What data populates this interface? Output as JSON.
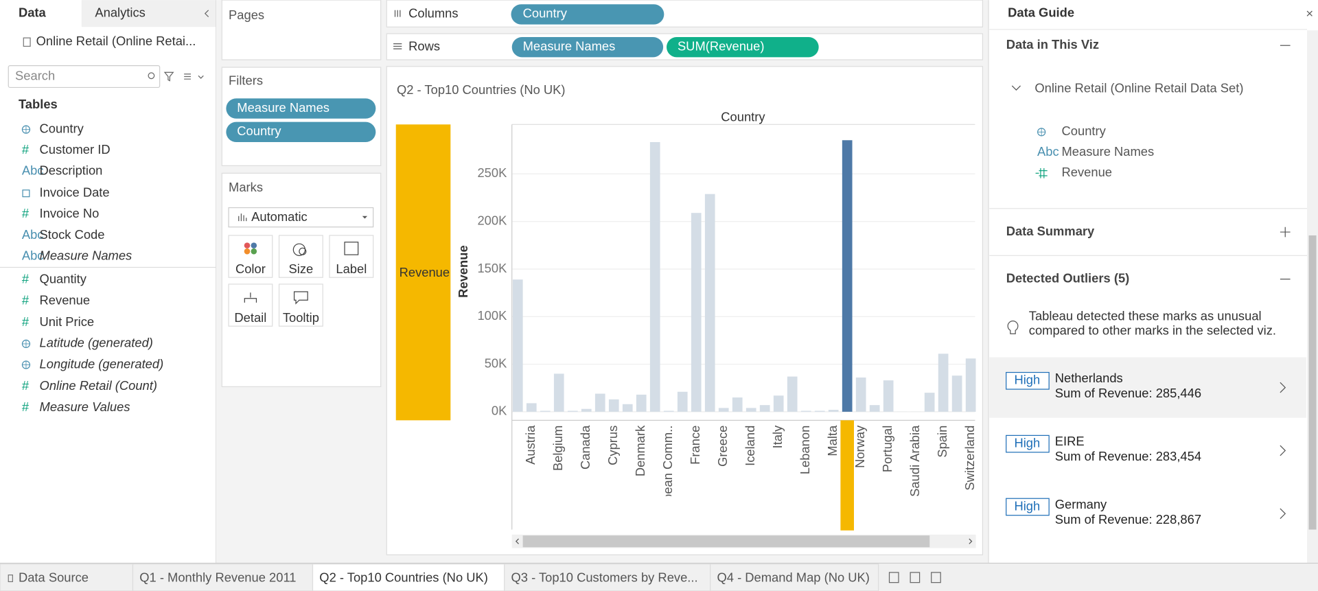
{
  "sidebar": {
    "tabs": [
      "Data",
      "Analytics"
    ],
    "datasource": "Online Retail (Online Retai...",
    "search_placeholder": "Search",
    "tables_heading": "Tables",
    "fields": [
      {
        "icon": "globe",
        "name": "Country",
        "italic": false
      },
      {
        "icon": "#",
        "name": "Customer ID",
        "italic": false
      },
      {
        "icon": "Abc",
        "name": "Description",
        "italic": false
      },
      {
        "icon": "calendar",
        "name": "Invoice Date",
        "italic": false
      },
      {
        "icon": "#",
        "name": "Invoice No",
        "italic": false
      },
      {
        "icon": "Abc",
        "name": "Stock Code",
        "italic": false
      },
      {
        "icon": "Abc",
        "name": "Measure Names",
        "italic": true
      },
      {
        "icon": "#",
        "name": "Quantity",
        "italic": false
      },
      {
        "icon": "#",
        "name": "Revenue",
        "italic": false
      },
      {
        "icon": "#",
        "name": "Unit Price",
        "italic": false
      },
      {
        "icon": "globe",
        "name": "Latitude (generated)",
        "italic": true
      },
      {
        "icon": "globe",
        "name": "Longitude (generated)",
        "italic": true
      },
      {
        "icon": "#",
        "name": "Online Retail (Count)",
        "italic": true
      },
      {
        "icon": "#",
        "name": "Measure Values",
        "italic": true
      }
    ]
  },
  "pages": {
    "heading": "Pages"
  },
  "filters": {
    "heading": "Filters",
    "pills": [
      "Measure Names",
      "Country"
    ]
  },
  "marks": {
    "heading": "Marks",
    "mark_type": "Automatic",
    "cards": [
      "Color",
      "Size",
      "Label",
      "Detail",
      "Tooltip"
    ]
  },
  "columns": {
    "label": "Columns",
    "pills": [
      "Country"
    ]
  },
  "rows": {
    "label": "Rows",
    "pills": [
      "Measure Names",
      "SUM(Revenue)"
    ]
  },
  "viz": {
    "title": "Q2 - Top10 Countries (No UK)",
    "column_header": "Country",
    "row_header": "Revenue",
    "chart_data": {
      "type": "bar",
      "y_label": "Revenue",
      "categories": [
        null,
        "Austria",
        null,
        "Belgium",
        null,
        "Canada",
        null,
        "Cyprus",
        null,
        "Denmark",
        null,
        "European Comm..",
        null,
        "France",
        null,
        "Greece",
        null,
        "Iceland",
        null,
        "Italy",
        null,
        "Lebanon",
        null,
        "Malta",
        null,
        "Norway",
        null,
        "Portugal",
        null,
        "Saudi Arabia",
        null,
        "Spain",
        null,
        "Switzerland"
      ],
      "values": [
        139000,
        9000,
        1000,
        40000,
        1000,
        3000,
        19000,
        13000,
        8000,
        18000,
        283454,
        1000,
        21000,
        209000,
        228867,
        4000,
        15000,
        4000,
        7000,
        17000,
        37000,
        1000,
        1000,
        2000,
        285446,
        36000,
        7000,
        33000,
        100,
        100,
        20000,
        61000,
        38000,
        56000
      ],
      "color": "#d4dde6",
      "highlight_index": 24,
      "highlight_color": "#4e79a7",
      "ylim": [
        -9000,
        302000
      ],
      "yticks": [
        {
          "value": 0,
          "label": "0K"
        },
        {
          "value": 50000,
          "label": "50K"
        },
        {
          "value": 100000,
          "label": "100K"
        },
        {
          "value": 150000,
          "label": "150K"
        },
        {
          "value": 200000,
          "label": "200K"
        },
        {
          "value": 250000,
          "label": "250K"
        }
      ],
      "grid": true
    }
  },
  "data_guide": {
    "title": "Data Guide",
    "in_viz_heading": "Data in This Viz",
    "datasource": "Online Retail (Online Retail Data Set)",
    "fields": [
      {
        "icon": "globe",
        "name": "Country"
      },
      {
        "icon": "Abc",
        "name": "Measure Names"
      },
      {
        "icon": "measure",
        "name": "Revenue"
      }
    ],
    "summary_heading": "Data Summary",
    "outliers_heading": "Detected Outliers (5)",
    "note": [
      "Tableau detected these marks as unusual",
      "compared to other marks in the selected viz."
    ],
    "outliers": [
      {
        "badge": "High",
        "name": "Netherlands",
        "detail": "Sum of Revenue: 285,446"
      },
      {
        "badge": "High",
        "name": "EIRE",
        "detail": "Sum of Revenue: 283,454"
      },
      {
        "badge": "High",
        "name": "Germany",
        "detail": "Sum of Revenue: 228,867"
      }
    ]
  },
  "sheet_tabs": {
    "tabs": [
      "Data Source",
      "Q1 - Monthly Revenue 2011",
      "Q2 - Top10 Countries (No UK)",
      "Q3 - Top10 Customers by Reve...",
      "Q4 - Demand Map (No UK)"
    ],
    "active": 2
  }
}
